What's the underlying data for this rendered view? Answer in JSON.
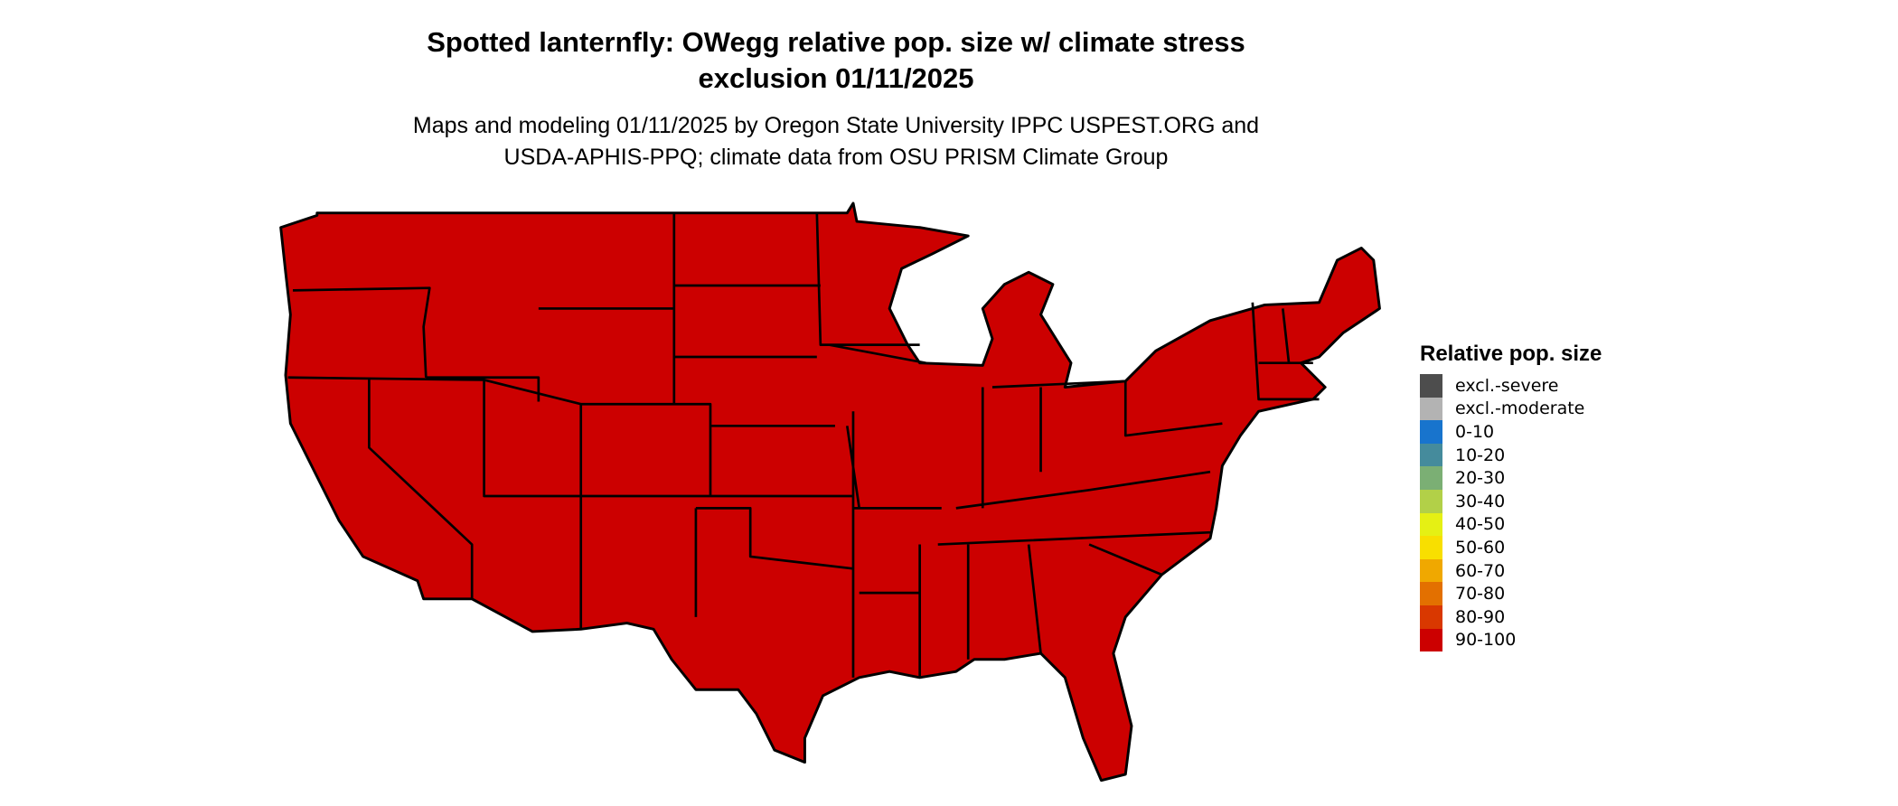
{
  "title": {
    "line1": "Spotted lanternfly: OWegg relative pop. size w/ climate stress",
    "line2": "exclusion 01/11/2025"
  },
  "subtitle": {
    "line1": "Maps and modeling 01/11/2025 by Oregon State University IPPC USPEST.ORG and",
    "line2": "USDA-APHIS-PPQ; climate data from OSU PRISM Climate Group"
  },
  "map": {
    "region": "Contiguous United States",
    "fill_color": "#CC0000",
    "border_color": "#000000",
    "category_shown": "90-100"
  },
  "legend": {
    "title": "Relative pop. size",
    "items": [
      {
        "label": "excl.-severe",
        "color": "#4D4D4D"
      },
      {
        "label": "excl.-moderate",
        "color": "#B3B3B3"
      },
      {
        "label": "0-10",
        "color": "#1874CD"
      },
      {
        "label": "10-20",
        "color": "#458B9C"
      },
      {
        "label": "20-30",
        "color": "#7BAF74"
      },
      {
        "label": "30-40",
        "color": "#B2D048"
      },
      {
        "label": "40-50",
        "color": "#E5F014"
      },
      {
        "label": "50-60",
        "color": "#F8DF00"
      },
      {
        "label": "60-70",
        "color": "#F0A800"
      },
      {
        "label": "70-80",
        "color": "#E37000"
      },
      {
        "label": "80-90",
        "color": "#D93800"
      },
      {
        "label": "90-100",
        "color": "#CC0000"
      }
    ]
  }
}
